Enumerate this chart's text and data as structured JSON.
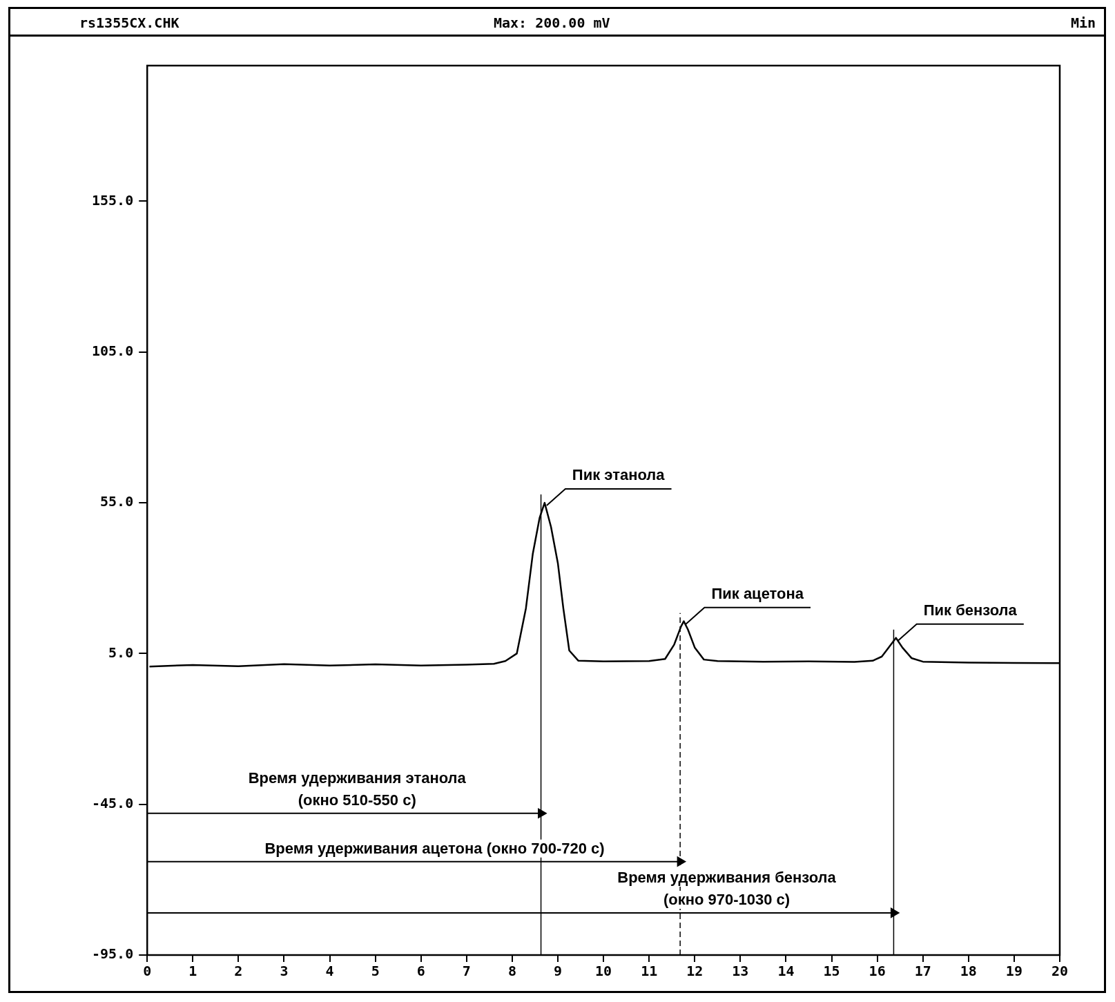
{
  "chart_data": {
    "type": "line",
    "title": "rs1355CX.CHK",
    "xlabel": "Min",
    "annotations": [
      "Max: 200.00 mV",
      {
        "text": "Пик этанола",
        "x": 8.71,
        "y": 55
      },
      {
        "text": "Пик ацетона",
        "x": 11.76,
        "y": 15.7
      },
      {
        "text": "Пик бензола",
        "x": 16.41,
        "y": 10.2
      },
      {
        "text": "Время удерживания этанола\n(окно 510-550 с)",
        "x": 4.6,
        "y": -48
      },
      {
        "text": "Время удерживания ацетона (окно 700-720 с)",
        "x": 6.3,
        "y": -64
      },
      {
        "text": "Время удерживания бензола\n(окно 970-1030 с)",
        "x": 12.7,
        "y": -81
      }
    ],
    "series": [
      {
        "color": "#000000",
        "x": [
          0.05,
          1,
          2,
          3,
          4,
          5,
          6,
          7,
          7.6,
          7.85,
          8.1,
          8.3,
          8.45,
          8.6,
          8.71,
          8.85,
          9.0,
          9.12,
          9.25,
          9.45,
          10,
          11,
          11.35,
          11.55,
          11.7,
          11.76,
          11.85,
          12.0,
          12.2,
          12.5,
          13.5,
          14.5,
          15.5,
          15.9,
          16.1,
          16.25,
          16.41,
          16.55,
          16.75,
          17,
          18,
          19,
          20
        ],
        "values": [
          0.7,
          1.2,
          0.8,
          1.5,
          1.0,
          1.4,
          1.0,
          1.3,
          1.6,
          2.5,
          5,
          20,
          38,
          50,
          55,
          47,
          35,
          20,
          6,
          2.6,
          2.4,
          2.5,
          3.2,
          8,
          14,
          15.7,
          13,
          7,
          3,
          2.5,
          2.3,
          2.4,
          2.2,
          2.6,
          4,
          7,
          10.2,
          7,
          3.5,
          2.3,
          2.0,
          1.9,
          1.8
        ]
      },
      {
        "color": "#000000",
        "x": [
          0,
          8.63
        ],
        "values": [
          -48,
          -48
        ],
        "marker": "triangle"
      },
      {
        "color": "#000000",
        "x": [
          0,
          11.68
        ],
        "values": [
          -64,
          -64
        ],
        "marker": "triangle"
      },
      {
        "color": "#000000",
        "x": [
          0,
          16.36
        ],
        "values": [
          -81,
          -81
        ],
        "marker": "triangle"
      }
    ],
    "xlim": [
      0,
      20
    ],
    "xticks": [
      0,
      1,
      2,
      3,
      4,
      5,
      6,
      7,
      8,
      9,
      10,
      11,
      12,
      13,
      14,
      15,
      16,
      17,
      18,
      19,
      20
    ],
    "ylim": [
      -95,
      200
    ],
    "yticks": [
      {
        "value": -95,
        "label": "-95.0"
      },
      {
        "value": -45,
        "label": "-45.0"
      },
      {
        "value": 5,
        "label": "5.0"
      },
      {
        "value": 55,
        "label": "55.0"
      },
      {
        "value": 105,
        "label": "105.0"
      },
      {
        "value": 155,
        "label": "155.0"
      }
    ],
    "ref_lines": [
      {
        "axis": "x",
        "value": 8.63,
        "line_style": "solid"
      },
      {
        "axis": "x",
        "value": 11.68,
        "line_style": "dashed"
      },
      {
        "axis": "x",
        "value": 16.36,
        "line_style": "solid"
      }
    ],
    "grid": false,
    "legend": false,
    "marker": "none",
    "line_style": "solid"
  }
}
